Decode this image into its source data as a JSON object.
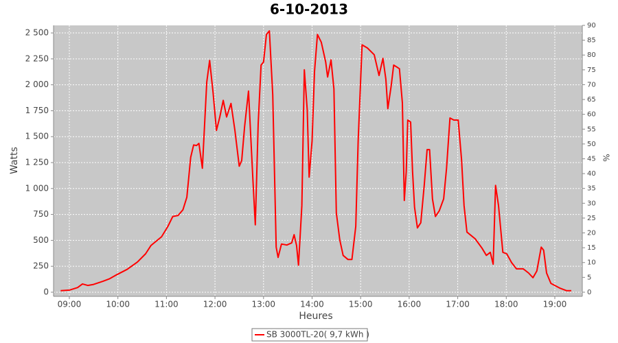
{
  "chart_data": {
    "type": "line",
    "title": "6-10-2013",
    "xlabel": "Heures",
    "ylabel": "Watts",
    "y2label": "%",
    "x": [
      8.82,
      9.0,
      9.17,
      9.27,
      9.38,
      9.5,
      9.69,
      9.83,
      9.98,
      10.19,
      10.4,
      10.57,
      10.68,
      10.9,
      11.03,
      11.13,
      11.24,
      11.34,
      11.42,
      11.5,
      11.56,
      11.62,
      11.67,
      11.74,
      11.83,
      11.89,
      11.96,
      12.03,
      12.1,
      12.17,
      12.24,
      12.33,
      12.41,
      12.5,
      12.55,
      12.61,
      12.69,
      12.78,
      12.83,
      12.89,
      12.95,
      13.0,
      13.06,
      13.12,
      13.19,
      13.26,
      13.3,
      13.37,
      13.48,
      13.58,
      13.63,
      13.68,
      13.72,
      13.79,
      13.84,
      13.9,
      13.94,
      14.0,
      14.05,
      14.11,
      14.19,
      14.28,
      14.32,
      14.39,
      14.45,
      14.5,
      14.57,
      14.64,
      14.74,
      14.82,
      14.9,
      14.95,
      15.03,
      15.14,
      15.28,
      15.38,
      15.46,
      15.52,
      15.56,
      15.63,
      15.68,
      15.75,
      15.8,
      15.86,
      15.9,
      15.94,
      15.97,
      16.03,
      16.07,
      16.11,
      16.17,
      16.24,
      16.31,
      16.37,
      16.42,
      16.48,
      16.54,
      16.62,
      16.71,
      16.77,
      16.84,
      16.92,
      17.01,
      17.08,
      17.13,
      17.19,
      17.36,
      17.5,
      17.59,
      17.67,
      17.73,
      17.78,
      17.84,
      17.93,
      18.01,
      18.11,
      18.21,
      18.35,
      18.46,
      18.55,
      18.63,
      18.72,
      18.77,
      18.83,
      18.92,
      19.1,
      19.24,
      19.34
    ],
    "series": [
      {
        "name": "SB 3000TL-20( 9,7 kWh )",
        "color": "#ff0000",
        "values": [
          15,
          20,
          45,
          80,
          65,
          75,
          105,
          130,
          170,
          220,
          290,
          370,
          450,
          535,
          635,
          730,
          740,
          795,
          915,
          1300,
          1420,
          1415,
          1435,
          1195,
          2025,
          2235,
          1925,
          1560,
          1690,
          1850,
          1690,
          1820,
          1560,
          1215,
          1270,
          1595,
          1940,
          1100,
          650,
          1625,
          2190,
          2220,
          2485,
          2520,
          1905,
          435,
          335,
          465,
          455,
          475,
          555,
          450,
          260,
          835,
          2145,
          1760,
          1110,
          1460,
          2125,
          2485,
          2410,
          2220,
          2075,
          2240,
          1960,
          765,
          505,
          355,
          315,
          315,
          635,
          1460,
          2385,
          2355,
          2290,
          2090,
          2255,
          2055,
          1770,
          1990,
          2190,
          2170,
          2155,
          1825,
          885,
          1165,
          1660,
          1640,
          1165,
          820,
          620,
          670,
          1030,
          1375,
          1375,
          900,
          730,
          785,
          900,
          1195,
          1680,
          1660,
          1660,
          1275,
          835,
          580,
          515,
          425,
          355,
          385,
          270,
          1030,
          835,
          385,
          370,
          285,
          225,
          225,
          185,
          140,
          205,
          435,
          405,
          185,
          85,
          40,
          15,
          15
        ]
      }
    ],
    "xlim": [
      8.675,
      19.566
    ],
    "xticks": [
      {
        "value": 9,
        "label": "09:00"
      },
      {
        "value": 10,
        "label": "10:00"
      },
      {
        "value": 11,
        "label": "11:00"
      },
      {
        "value": 12,
        "label": "12:00"
      },
      {
        "value": 13,
        "label": "13:00"
      },
      {
        "value": 14,
        "label": "14:00"
      },
      {
        "value": 15,
        "label": "15:00"
      },
      {
        "value": 16,
        "label": "16:00"
      },
      {
        "value": 17,
        "label": "17:00"
      },
      {
        "value": 18,
        "label": "18:00"
      },
      {
        "value": 19,
        "label": "19:00"
      }
    ],
    "ylim": [
      -40,
      2573
    ],
    "yticks": [
      0,
      250,
      500,
      750,
      {
        "value": 1000,
        "label": "1 000"
      },
      {
        "value": 1250,
        "label": "1 250"
      },
      {
        "value": 1500,
        "label": "1 500"
      },
      {
        "value": 1750,
        "label": "1 750"
      },
      {
        "value": 2000,
        "label": "2 000"
      },
      {
        "value": 2250,
        "label": "2 250"
      },
      {
        "value": 2500,
        "label": "2 500"
      }
    ],
    "y2lim": [
      -1.4,
      90
    ],
    "y2ticks": [
      0,
      5,
      10,
      15,
      20,
      25,
      30,
      35,
      40,
      45,
      50,
      55,
      60,
      65,
      70,
      75,
      80,
      85,
      90
    ],
    "grid": true
  }
}
